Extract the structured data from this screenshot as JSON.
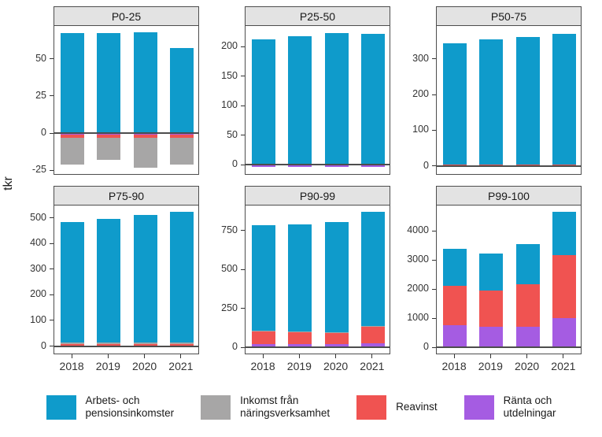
{
  "chart_data": {
    "type": "bar",
    "stacked": true,
    "title": "",
    "ylabel": "tkr",
    "xlabel": "",
    "grid": false,
    "legend_position": "bottom",
    "x_labels": [
      "2018",
      "2019",
      "2020",
      "2021"
    ],
    "stack_order": [
      "ranta",
      "reavinst",
      "naring",
      "arbets"
    ],
    "series": [
      {
        "key": "arbets",
        "label": "Arbets- och pensionsinkomster",
        "legend_label": "Arbets- och\npensionsinkomster",
        "color": "#0F9BCB"
      },
      {
        "key": "naring",
        "label": "Inkomst från näringsverksamhet",
        "legend_label": "Inkomst från\nnäringsverksamhet",
        "color": "#A7A6A6"
      },
      {
        "key": "reavinst",
        "label": "Reavinst",
        "legend_label": "Reavinst",
        "color": "#F05351"
      },
      {
        "key": "ranta",
        "label": "Ränta och utdelningar",
        "legend_label": "Ränta och\nutdelningar",
        "color": "#A55CE2"
      }
    ],
    "panels": [
      {
        "title": "P0-25",
        "ylim": [
          -28,
          72
        ],
        "yticks": [
          -25,
          0,
          25,
          50
        ],
        "show_x_axis": false,
        "values": {
          "arbets": [
            67,
            67,
            68,
            57
          ],
          "naring": [
            -18,
            -15,
            -20,
            -18
          ],
          "reavinst": [
            -2,
            -2,
            -2,
            -2
          ],
          "ranta": [
            -1,
            -1,
            -1,
            -1
          ]
        }
      },
      {
        "title": "P25-50",
        "ylim": [
          -17,
          235
        ],
        "yticks": [
          0,
          50,
          100,
          150,
          200
        ],
        "show_x_axis": false,
        "values": {
          "arbets": [
            211,
            216,
            221,
            220
          ],
          "naring": [
            0,
            0,
            0,
            0
          ],
          "reavinst": [
            2,
            2,
            2,
            2
          ],
          "ranta": [
            -3,
            -3,
            -3,
            -3
          ]
        }
      },
      {
        "title": "P50-75",
        "ylim": [
          -25,
          392
        ],
        "yticks": [
          0,
          100,
          200,
          300
        ],
        "show_x_axis": false,
        "values": {
          "arbets": [
            340,
            350,
            357,
            367
          ],
          "naring": [
            0,
            0,
            0,
            0
          ],
          "reavinst": [
            4,
            4,
            4,
            4
          ],
          "ranta": [
            -4,
            -4,
            -4,
            -4
          ]
        }
      },
      {
        "title": "P75-90",
        "ylim": [
          -32,
          548
        ],
        "yticks": [
          0,
          100,
          200,
          300,
          400,
          500
        ],
        "show_x_axis": true,
        "values": {
          "arbets": [
            470,
            481,
            496,
            510
          ],
          "naring": [
            5,
            5,
            5,
            5
          ],
          "reavinst": [
            9,
            9,
            9,
            9
          ],
          "ranta": [
            -5,
            -5,
            -5,
            -5
          ]
        }
      },
      {
        "title": "P90-99",
        "ylim": [
          -45,
          912
        ],
        "yticks": [
          0,
          250,
          500,
          750
        ],
        "show_x_axis": true,
        "values": {
          "arbets": [
            677,
            693,
            707,
            736
          ],
          "naring": [
            3,
            3,
            3,
            3
          ],
          "reavinst": [
            82,
            75,
            75,
            105
          ],
          "ranta": [
            23,
            22,
            20,
            28
          ]
        }
      },
      {
        "title": "P99-100",
        "ylim": [
          -240,
          4880
        ],
        "yticks": [
          0,
          1000,
          2000,
          3000,
          4000
        ],
        "show_x_axis": true,
        "values": {
          "arbets": [
            1290,
            1270,
            1370,
            1490
          ],
          "naring": [
            0,
            0,
            0,
            0
          ],
          "reavinst": [
            1350,
            1260,
            1480,
            2160
          ],
          "ranta": [
            760,
            700,
            700,
            1010
          ]
        }
      }
    ]
  }
}
